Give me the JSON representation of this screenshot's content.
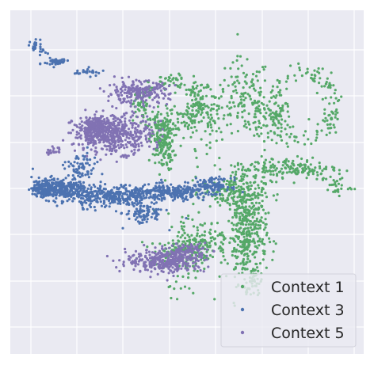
{
  "chart_data": {
    "type": "scatter",
    "title": "",
    "xlabel": "",
    "ylabel": "",
    "xlim": [
      0,
      100
    ],
    "ylim": [
      0,
      100
    ],
    "grid": true,
    "legend_position": "bottom-right",
    "background": "#eaeaf2",
    "grid_color": "#ffffff",
    "series": [
      {
        "name": "Context 1",
        "color": "#55a868",
        "clusters": [
          {
            "cx": 73,
            "cy": 68,
            "rx": 6,
            "ry": 6,
            "n": 80
          },
          {
            "cx": 83,
            "cy": 72,
            "rx": 9,
            "ry": 11,
            "n": 160,
            "shape": "ring"
          },
          {
            "cx": 66,
            "cy": 75,
            "rx": 7,
            "ry": 10,
            "n": 110
          },
          {
            "cx": 45,
            "cy": 73,
            "rx": 9,
            "ry": 7,
            "n": 200,
            "shape": "ring"
          },
          {
            "cx": 43,
            "cy": 62,
            "rx": 3,
            "ry": 8,
            "n": 200
          },
          {
            "cx": 55,
            "cy": 70,
            "rx": 8,
            "ry": 9,
            "n": 120
          },
          {
            "cx": 67,
            "cy": 35,
            "rx": 5,
            "ry": 13,
            "n": 380
          },
          {
            "cx": 63,
            "cy": 47,
            "rx": 8,
            "ry": 4,
            "n": 160
          },
          {
            "cx": 78,
            "cy": 54,
            "rx": 14,
            "ry": 3,
            "n": 170
          },
          {
            "cx": 50,
            "cy": 29,
            "rx": 5,
            "ry": 11,
            "n": 90
          },
          {
            "cx": 55,
            "cy": 33,
            "rx": 6,
            "ry": 6,
            "n": 90
          },
          {
            "cx": 48,
            "cy": 30,
            "rx": 8,
            "ry": 3,
            "n": 80
          },
          {
            "cx": 69,
            "cy": 21,
            "rx": 2,
            "ry": 4,
            "n": 30
          },
          {
            "cx": 92,
            "cy": 49,
            "rx": 4,
            "ry": 3,
            "n": 30
          }
        ]
      },
      {
        "name": "Context 3",
        "color": "#4c72b0",
        "clusters": [
          {
            "cx": 14,
            "cy": 48,
            "rx": 7,
            "ry": 3,
            "n": 260
          },
          {
            "cx": 10,
            "cy": 48,
            "rx": 3,
            "ry": 2,
            "n": 150
          },
          {
            "cx": 28,
            "cy": 46,
            "rx": 10,
            "ry": 3,
            "n": 300
          },
          {
            "cx": 45,
            "cy": 47,
            "rx": 10,
            "ry": 2,
            "n": 250
          },
          {
            "cx": 57,
            "cy": 49,
            "rx": 5,
            "ry": 2,
            "n": 110
          },
          {
            "cx": 20,
            "cy": 54,
            "rx": 4,
            "ry": 4,
            "n": 70
          },
          {
            "cx": 38,
            "cy": 41,
            "rx": 5,
            "ry": 3,
            "n": 90
          },
          {
            "cx": 8,
            "cy": 89,
            "rx": 2,
            "ry": 2,
            "n": 25
          },
          {
            "cx": 13,
            "cy": 85,
            "rx": 3,
            "ry": 1,
            "n": 50
          },
          {
            "cx": 22,
            "cy": 82,
            "rx": 4,
            "ry": 1,
            "n": 25
          }
        ]
      },
      {
        "name": "Context 5",
        "color": "#8172b3",
        "clusters": [
          {
            "cx": 29,
            "cy": 64,
            "rx": 10,
            "ry": 5,
            "n": 500
          },
          {
            "cx": 24,
            "cy": 66,
            "rx": 4,
            "ry": 3,
            "n": 150
          },
          {
            "cx": 36,
            "cy": 76,
            "rx": 8,
            "ry": 3,
            "n": 220
          },
          {
            "cx": 44,
            "cy": 27,
            "rx": 10,
            "ry": 3,
            "n": 320
          },
          {
            "cx": 50,
            "cy": 30,
            "rx": 5,
            "ry": 2,
            "n": 90
          },
          {
            "cx": 12,
            "cy": 59,
            "rx": 2,
            "ry": 1,
            "n": 20
          }
        ]
      }
    ]
  }
}
